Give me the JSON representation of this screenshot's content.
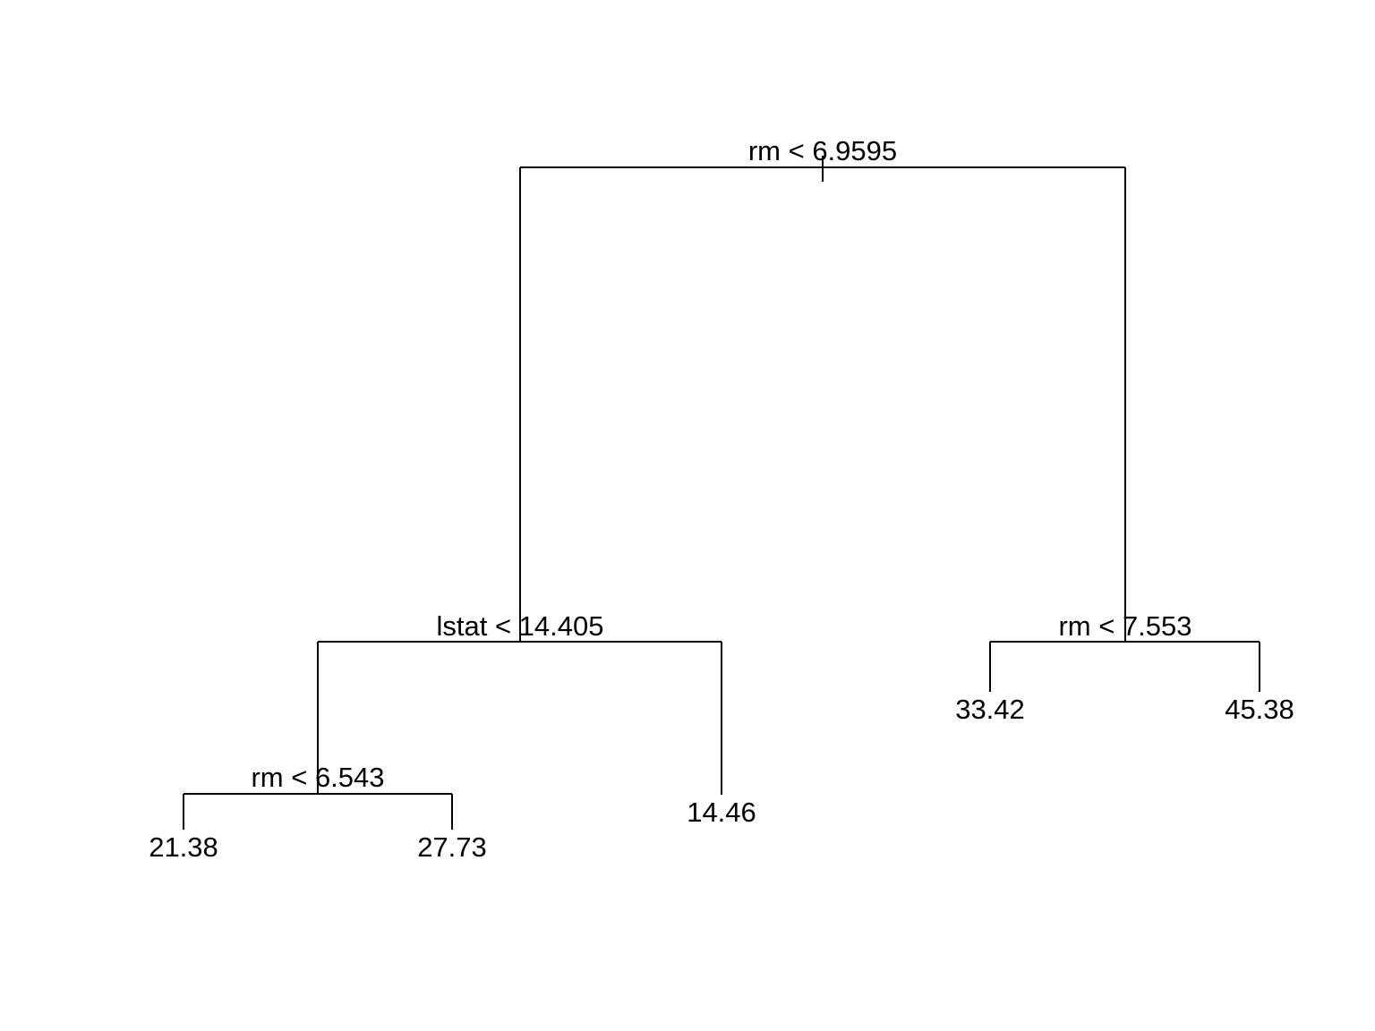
{
  "tree": {
    "root": {
      "split": "rm < 6.9595",
      "left": {
        "split": "lstat < 14.405",
        "left": {
          "split": "rm < 6.543",
          "left": {
            "leaf": "21.38"
          },
          "right": {
            "leaf": "27.73"
          }
        },
        "right": {
          "leaf": "14.46"
        }
      },
      "right": {
        "split": "rm < 7.553",
        "left": {
          "leaf": "33.42"
        },
        "right": {
          "leaf": "45.38"
        }
      }
    }
  }
}
